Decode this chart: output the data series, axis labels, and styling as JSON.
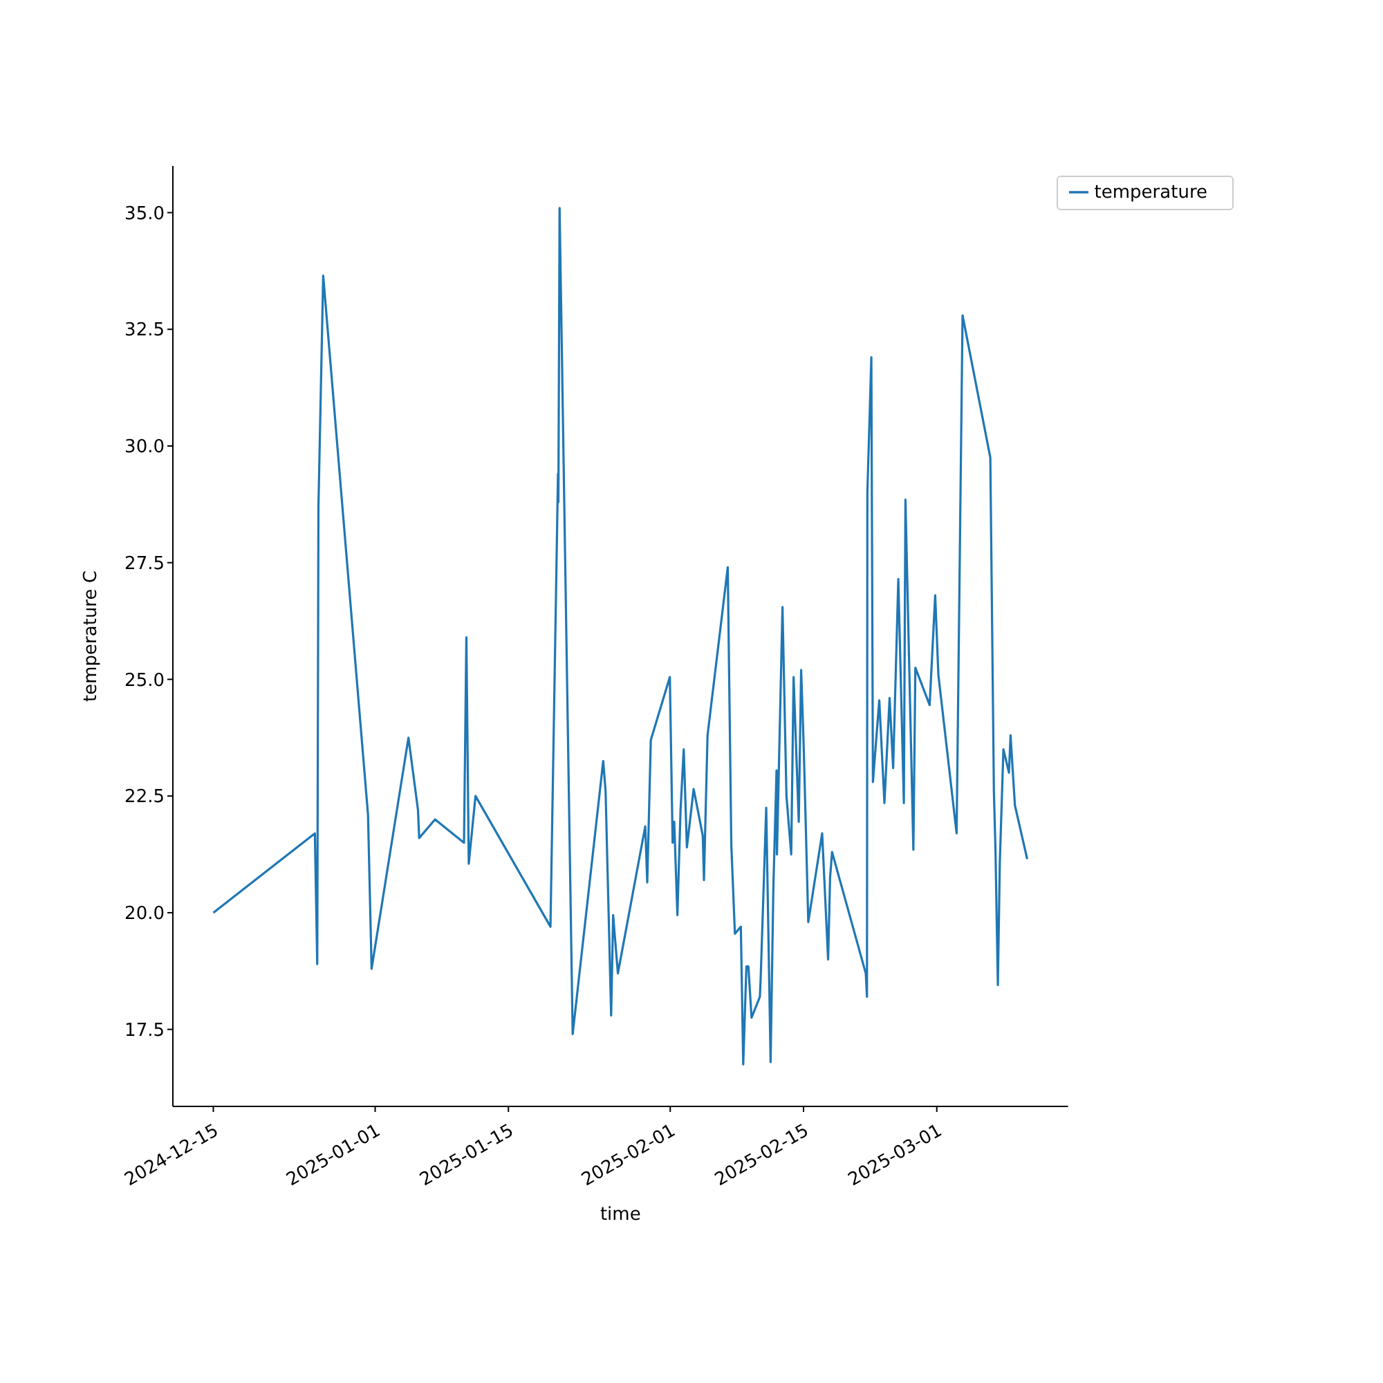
{
  "chart_data": {
    "type": "line",
    "xlabel": "time",
    "ylabel": "temperature C",
    "x": [
      "2024-12-15T00:00",
      "2024-12-25T16:00",
      "2024-12-25T22:00",
      "2024-12-26T01:00",
      "2024-12-26T13:00",
      "2024-12-31T06:00",
      "2024-12-31T15:00",
      "2025-01-04T12:00",
      "2025-01-05T12:00",
      "2025-01-05T15:00",
      "2025-01-07T07:00",
      "2025-01-10T08:00",
      "2025-01-10T14:00",
      "2025-01-10T20:00",
      "2025-01-11T13:00",
      "2025-01-19T10:00",
      "2025-01-20T05:00",
      "2025-01-20T06:00",
      "2025-01-20T09:00",
      "2025-01-21T18:00",
      "2025-01-24T23:00",
      "2025-01-25T05:00",
      "2025-01-25T19:00",
      "2025-01-26T00:00",
      "2025-01-26T12:00",
      "2025-01-29T09:00",
      "2025-01-29T14:00",
      "2025-01-29T23:00",
      "2025-01-31T23:00",
      "2025-02-01T06:00",
      "2025-02-01T10:00",
      "2025-02-01T18:00",
      "2025-02-02T02:00",
      "2025-02-02T10:00",
      "2025-02-02T18:00",
      "2025-02-03T11:00",
      "2025-02-04T10:00",
      "2025-02-04T13:00",
      "2025-02-04T22:00",
      "2025-02-07T01:00",
      "2025-02-07T10:00",
      "2025-02-07T19:00",
      "2025-02-08T10:00",
      "2025-02-08T16:00",
      "2025-02-09T00:00",
      "2025-02-09T05:00",
      "2025-02-09T13:00",
      "2025-02-10T10:00",
      "2025-02-10T12:00",
      "2025-02-11T02:00",
      "2025-02-11T13:00",
      "2025-02-11T20:00",
      "2025-02-12T04:00",
      "2025-02-12T05:00",
      "2025-02-12T19:00",
      "2025-02-13T05:00",
      "2025-02-13T17:00",
      "2025-02-13T23:00",
      "2025-02-14T12:00",
      "2025-02-14T18:00",
      "2025-02-14T23:00",
      "2025-02-15T01:00",
      "2025-02-15T12:00",
      "2025-02-16T23:00",
      "2025-02-17T14:00",
      "2025-02-17T19:00",
      "2025-02-18T00:00",
      "2025-02-21T13:00",
      "2025-02-21T16:00",
      "2025-02-21T17:00",
      "2025-02-22T03:00",
      "2025-02-22T07:00",
      "2025-02-22T23:00",
      "2025-02-23T12:00",
      "2025-02-24T01:00",
      "2025-02-24T10:00",
      "2025-02-24T23:00",
      "2025-02-25T13:00",
      "2025-02-25T17:00",
      "2025-02-26T13:00",
      "2025-02-26T18:00",
      "2025-02-28T06:00",
      "2025-02-28T20:00",
      "2025-03-01T04:00",
      "2025-03-03T02:00",
      "2025-03-03T17:00",
      "2025-03-06T15:00",
      "2025-03-07T00:00",
      "2025-03-07T04:00",
      "2025-03-07T10:00",
      "2025-03-07T15:00",
      "2025-03-08T00:00",
      "2025-03-08T14:00",
      "2025-03-08T18:00",
      "2025-03-09T05:00",
      "2025-03-10T12:00"
    ],
    "series": [
      {
        "name": "temperature",
        "color": "#1f77b4",
        "values": [
          20.0,
          21.7,
          18.9,
          28.7,
          33.65,
          22.1,
          18.8,
          23.75,
          22.2,
          21.6,
          22.0,
          21.5,
          25.9,
          21.05,
          22.5,
          19.7,
          29.4,
          28.8,
          35.1,
          17.4,
          23.25,
          22.6,
          17.8,
          19.95,
          18.7,
          21.85,
          20.65,
          23.7,
          25.05,
          21.5,
          21.95,
          19.95,
          22.2,
          23.5,
          21.4,
          22.65,
          21.65,
          20.7,
          23.8,
          27.4,
          21.45,
          19.55,
          19.7,
          16.75,
          18.85,
          18.85,
          17.75,
          18.2,
          18.6,
          22.25,
          16.8,
          20.55,
          23.05,
          21.25,
          26.55,
          22.5,
          21.25,
          25.05,
          21.95,
          25.2,
          23.95,
          23.4,
          19.8,
          21.7,
          19.0,
          20.75,
          21.3,
          18.7,
          18.2,
          29.0,
          31.9,
          22.8,
          24.55,
          22.35,
          24.6,
          23.1,
          27.15,
          22.35,
          28.85,
          21.35,
          25.25,
          24.45,
          26.8,
          25.1,
          21.7,
          32.8,
          29.75,
          22.6,
          21.35,
          18.45,
          21.1,
          23.5,
          23.0,
          23.8,
          22.3,
          21.15
        ]
      }
    ],
    "xlim": [
      "2024-12-10T18:00",
      "2025-03-14T19:00"
    ],
    "xticks": [
      "2024-12-15",
      "2025-01-01",
      "2025-01-15",
      "2025-02-01",
      "2025-02-15",
      "2025-03-01"
    ],
    "ylim": [
      15.85,
      36.0
    ],
    "yticks": [
      {
        "value": 17.5,
        "label": "17.5"
      },
      {
        "value": 20,
        "label": "20.0"
      },
      {
        "value": 22.5,
        "label": "22.5"
      },
      {
        "value": 25,
        "label": "25.0"
      },
      {
        "value": 27.5,
        "label": "27.5"
      },
      {
        "value": 30,
        "label": "30.0"
      },
      {
        "value": 32.5,
        "label": "32.5"
      },
      {
        "value": 35,
        "label": "35.0"
      }
    ],
    "legend": "top right",
    "grid": false
  }
}
